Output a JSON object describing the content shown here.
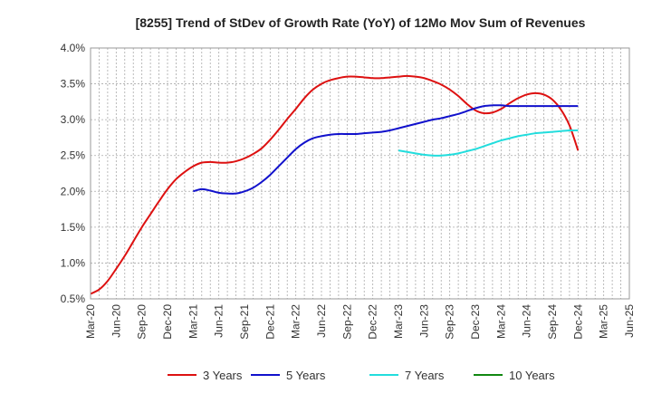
{
  "chart_data": {
    "type": "line",
    "title": "[8255]  Trend of StDev of Growth Rate (YoY) of 12Mo Mov Sum of Revenues",
    "xlabel": "",
    "ylabel": "",
    "ylim": [
      0.5,
      4.0
    ],
    "y_ticks": [
      0.5,
      1.0,
      1.5,
      2.0,
      2.5,
      3.0,
      3.5,
      4.0
    ],
    "y_tick_labels": [
      "0.5%",
      "1.0%",
      "1.5%",
      "2.0%",
      "2.5%",
      "3.0%",
      "3.5%",
      "4.0%"
    ],
    "x_tick_labels": [
      "Mar-20",
      "Jun-20",
      "Sep-20",
      "Dec-20",
      "Mar-21",
      "Jun-21",
      "Sep-21",
      "Dec-21",
      "Mar-22",
      "Jun-22",
      "Sep-22",
      "Dec-22",
      "Mar-23",
      "Jun-23",
      "Sep-23",
      "Dec-23",
      "Mar-24",
      "Jun-24",
      "Sep-24",
      "Dec-24",
      "Mar-25",
      "Jun-25"
    ],
    "x_unit": "month index from Mar-20",
    "grid": true,
    "legend_position": "bottom",
    "series": [
      {
        "name": "3 Years",
        "color": "#dd1111",
        "points": [
          [
            0,
            0.57
          ],
          [
            1,
            0.63
          ],
          [
            2,
            0.75
          ],
          [
            3,
            0.92
          ],
          [
            4,
            1.1
          ],
          [
            5,
            1.3
          ],
          [
            6,
            1.5
          ],
          [
            7,
            1.68
          ],
          [
            8,
            1.86
          ],
          [
            9,
            2.03
          ],
          [
            10,
            2.17
          ],
          [
            11,
            2.27
          ],
          [
            12,
            2.35
          ],
          [
            13,
            2.4
          ],
          [
            14,
            2.41
          ],
          [
            15,
            2.4
          ],
          [
            16,
            2.4
          ],
          [
            17,
            2.42
          ],
          [
            18,
            2.46
          ],
          [
            19,
            2.52
          ],
          [
            20,
            2.6
          ],
          [
            21,
            2.72
          ],
          [
            22,
            2.86
          ],
          [
            23,
            3.01
          ],
          [
            24,
            3.15
          ],
          [
            25,
            3.3
          ],
          [
            26,
            3.42
          ],
          [
            27,
            3.5
          ],
          [
            28,
            3.55
          ],
          [
            29,
            3.58
          ],
          [
            30,
            3.6
          ],
          [
            31,
            3.6
          ],
          [
            32,
            3.59
          ],
          [
            33,
            3.58
          ],
          [
            34,
            3.58
          ],
          [
            35,
            3.59
          ],
          [
            36,
            3.6
          ],
          [
            37,
            3.61
          ],
          [
            38,
            3.6
          ],
          [
            39,
            3.58
          ],
          [
            40,
            3.54
          ],
          [
            41,
            3.49
          ],
          [
            42,
            3.42
          ],
          [
            43,
            3.33
          ],
          [
            44,
            3.22
          ],
          [
            45,
            3.13
          ],
          [
            46,
            3.09
          ],
          [
            47,
            3.1
          ],
          [
            48,
            3.15
          ],
          [
            49,
            3.23
          ],
          [
            50,
            3.3
          ],
          [
            51,
            3.35
          ],
          [
            52,
            3.37
          ],
          [
            53,
            3.35
          ],
          [
            54,
            3.28
          ],
          [
            55,
            3.14
          ],
          [
            56,
            2.92
          ],
          [
            57,
            2.57
          ]
        ]
      },
      {
        "name": "5 Years",
        "color": "#1111cc",
        "points": [
          [
            12,
            2.0
          ],
          [
            13,
            2.03
          ],
          [
            14,
            2.01
          ],
          [
            15,
            1.98
          ],
          [
            16,
            1.97
          ],
          [
            17,
            1.97
          ],
          [
            18,
            2.0
          ],
          [
            19,
            2.05
          ],
          [
            20,
            2.13
          ],
          [
            21,
            2.23
          ],
          [
            22,
            2.35
          ],
          [
            23,
            2.47
          ],
          [
            24,
            2.59
          ],
          [
            25,
            2.68
          ],
          [
            26,
            2.74
          ],
          [
            27,
            2.77
          ],
          [
            28,
            2.79
          ],
          [
            29,
            2.8
          ],
          [
            30,
            2.8
          ],
          [
            31,
            2.8
          ],
          [
            32,
            2.81
          ],
          [
            33,
            2.82
          ],
          [
            34,
            2.83
          ],
          [
            35,
            2.85
          ],
          [
            36,
            2.88
          ],
          [
            37,
            2.91
          ],
          [
            38,
            2.94
          ],
          [
            39,
            2.97
          ],
          [
            40,
            3.0
          ],
          [
            41,
            3.02
          ],
          [
            42,
            3.05
          ],
          [
            43,
            3.08
          ],
          [
            44,
            3.12
          ],
          [
            45,
            3.16
          ],
          [
            46,
            3.19
          ],
          [
            47,
            3.2
          ],
          [
            48,
            3.2
          ],
          [
            49,
            3.19
          ],
          [
            50,
            3.19
          ],
          [
            51,
            3.19
          ],
          [
            52,
            3.19
          ],
          [
            53,
            3.19
          ],
          [
            54,
            3.19
          ],
          [
            55,
            3.19
          ],
          [
            56,
            3.19
          ],
          [
            57,
            3.19
          ]
        ]
      },
      {
        "name": "7 Years",
        "color": "#22dddd",
        "points": [
          [
            36,
            2.57
          ],
          [
            37,
            2.55
          ],
          [
            38,
            2.53
          ],
          [
            39,
            2.51
          ],
          [
            40,
            2.5
          ],
          [
            41,
            2.5
          ],
          [
            42,
            2.51
          ],
          [
            43,
            2.53
          ],
          [
            44,
            2.56
          ],
          [
            45,
            2.59
          ],
          [
            46,
            2.63
          ],
          [
            47,
            2.67
          ],
          [
            48,
            2.71
          ],
          [
            49,
            2.74
          ],
          [
            50,
            2.77
          ],
          [
            51,
            2.79
          ],
          [
            52,
            2.81
          ],
          [
            53,
            2.82
          ],
          [
            54,
            2.83
          ],
          [
            55,
            2.84
          ],
          [
            56,
            2.85
          ],
          [
            57,
            2.85
          ]
        ]
      },
      {
        "name": "10 Years",
        "color": "#118811",
        "points": []
      }
    ]
  }
}
